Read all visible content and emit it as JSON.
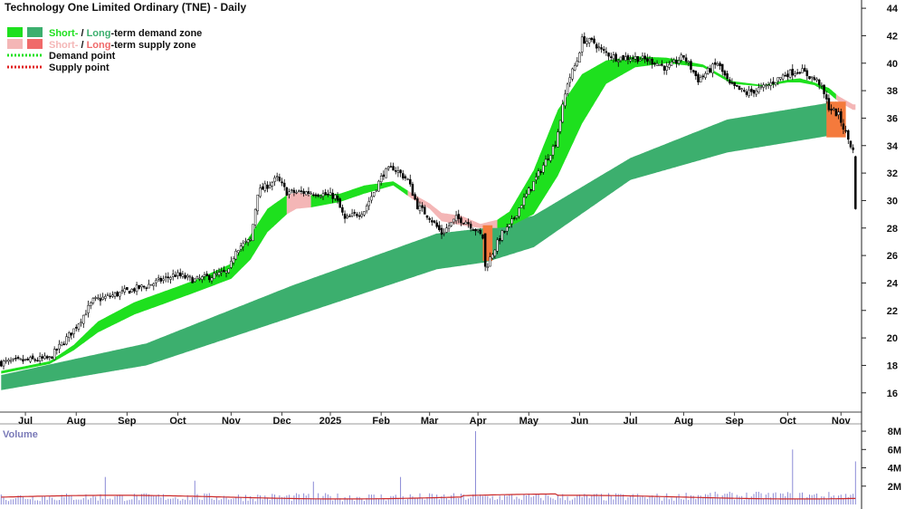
{
  "chart_data": {
    "type": "line",
    "title": "Technology One Limited Ordinary (TNE) - Daily",
    "price_panel": {
      "ylim": [
        14.6,
        44.6
      ],
      "y_ticks": [
        16,
        18,
        20,
        22,
        24,
        26,
        28,
        30,
        32,
        34,
        36,
        38,
        40,
        42,
        44
      ],
      "y_tick_labels": [
        "16",
        "18",
        "20",
        "22",
        "24",
        "26",
        "28",
        "30",
        "32",
        "34",
        "36",
        "38",
        "40",
        "42",
        "44"
      ],
      "x_labels": [
        "Jul",
        "Aug",
        "Sep",
        "Oct",
        "Nov",
        "Dec",
        "2025",
        "Feb",
        "Mar",
        "Apr",
        "May",
        "Jun",
        "Jul",
        "Aug",
        "Sep",
        "Oct",
        "Nov"
      ],
      "x_label_positions": [
        10,
        31,
        52,
        73,
        95,
        116,
        136,
        157,
        177,
        197,
        218,
        239,
        260,
        282,
        303,
        325,
        347
      ],
      "total_days": 356,
      "price_anchors": [
        [
          0,
          18.2
        ],
        [
          20,
          18.5
        ],
        [
          30,
          20.6
        ],
        [
          38,
          22.7
        ],
        [
          50,
          23.3
        ],
        [
          60,
          23.8
        ],
        [
          72,
          24.6
        ],
        [
          80,
          24.2
        ],
        [
          94,
          24.8
        ],
        [
          97,
          26.5
        ],
        [
          103,
          27.1
        ],
        [
          106,
          30.6
        ],
        [
          114,
          31.6
        ],
        [
          118,
          30.6
        ],
        [
          128,
          30.6
        ],
        [
          138,
          30.3
        ],
        [
          142,
          28.6
        ],
        [
          150,
          29.3
        ],
        [
          158,
          32.0
        ],
        [
          162,
          32.4
        ],
        [
          168,
          31.5
        ],
        [
          172,
          29.6
        ],
        [
          177,
          28.8
        ],
        [
          182,
          27.6
        ],
        [
          188,
          28.7
        ],
        [
          192,
          28.5
        ],
        [
          196,
          27.9
        ],
        [
          199,
          27.3
        ],
        [
          200,
          25.0
        ],
        [
          203,
          26.2
        ],
        [
          207,
          27.6
        ],
        [
          210,
          28.1
        ],
        [
          215,
          29.8
        ],
        [
          220,
          31.3
        ],
        [
          226,
          33.2
        ],
        [
          229,
          34.2
        ],
        [
          232,
          36.8
        ],
        [
          234,
          38.6
        ],
        [
          238,
          40.2
        ],
        [
          240,
          41.7
        ],
        [
          245,
          41.5
        ],
        [
          248,
          40.9
        ],
        [
          254,
          40.4
        ],
        [
          262,
          40.4
        ],
        [
          270,
          40.1
        ],
        [
          275,
          39.6
        ],
        [
          282,
          40.5
        ],
        [
          288,
          38.8
        ],
        [
          296,
          40.0
        ],
        [
          301,
          38.4
        ],
        [
          308,
          37.8
        ],
        [
          316,
          38.3
        ],
        [
          324,
          39.2
        ],
        [
          330,
          39.5
        ],
        [
          338,
          38.6
        ],
        [
          342,
          36.8
        ],
        [
          346,
          36.2
        ],
        [
          349,
          34.9
        ],
        [
          352,
          33.6
        ],
        [
          353,
          29.4
        ]
      ],
      "long_term_zone": {
        "name": "Long-term demand zone",
        "x": [
          0,
          60,
          120,
          180,
          200,
          220,
          260,
          300,
          345
        ],
        "upper": [
          17.3,
          19.6,
          23.8,
          27.6,
          28.0,
          28.9,
          33.1,
          35.9,
          37.2
        ],
        "lower": [
          16.2,
          18.0,
          21.5,
          25.0,
          25.5,
          26.6,
          31.5,
          33.5,
          34.8
        ]
      },
      "short_term_zone": {
        "name": "Short-term demand zone",
        "x": [
          0,
          20,
          30,
          40,
          55,
          80,
          95,
          103,
          110,
          118,
          122,
          128,
          140,
          150,
          162,
          170,
          177,
          182,
          190,
          198,
          205,
          210,
          220,
          230,
          240,
          250,
          262,
          275,
          290,
          302,
          315,
          325,
          330,
          336,
          342,
          346,
          352
        ],
        "upper": [
          17.6,
          18.3,
          19.5,
          21.2,
          22.6,
          24.2,
          25.4,
          27.5,
          29.4,
          30.4,
          30.6,
          30.4,
          30.5,
          31.1,
          31.4,
          30.5,
          29.8,
          29.1,
          28.9,
          28.3,
          28.6,
          29.2,
          32.2,
          36.6,
          39.2,
          40.2,
          40.5,
          40.4,
          39.9,
          38.7,
          38.4,
          38.8,
          38.9,
          38.6,
          38.2,
          37.6,
          37.0
        ],
        "lower": [
          17.4,
          18.1,
          19.1,
          20.4,
          21.7,
          23.3,
          24.3,
          25.7,
          27.7,
          29.0,
          29.4,
          29.5,
          29.9,
          30.5,
          31.1,
          30.1,
          29.4,
          28.5,
          28.2,
          28.0,
          28.0,
          28.1,
          29.0,
          31.8,
          35.6,
          38.5,
          39.7,
          40.0,
          39.7,
          38.5,
          38.3,
          38.6,
          38.6,
          38.4,
          37.8,
          37.2,
          36.6
        ],
        "modes": [
          [
            0,
            118,
            "demand"
          ],
          [
            118,
            128,
            "supply"
          ],
          [
            128,
            168,
            "demand"
          ],
          [
            168,
            205,
            "supply"
          ],
          [
            205,
            345,
            "demand"
          ],
          [
            345,
            353,
            "supply"
          ]
        ]
      },
      "supply_zone_boxes": [
        [
          199,
          203
        ],
        [
          341,
          349
        ]
      ]
    },
    "volume_panel": {
      "label": "Volume",
      "ylim": [
        0,
        8.6
      ],
      "y_ticks": [
        2,
        4,
        6,
        8
      ],
      "y_tick_labels": [
        "2M",
        "4M",
        "6M",
        "8M"
      ],
      "spikes": [
        [
          43,
          3.0
        ],
        [
          80,
          2.6
        ],
        [
          129,
          2.5
        ],
        [
          165,
          3.0
        ],
        [
          196,
          8.0
        ],
        [
          327,
          6.0
        ],
        [
          353,
          4.7
        ]
      ]
    },
    "legend": [
      {
        "label_short": "Short-",
        "label_long": "Long",
        "rest": "-term demand zone",
        "colors": [
          "#1ee01e",
          "#3caf6e"
        ],
        "kind": "demand"
      },
      {
        "label_short": "Short-",
        "label_long": "Long",
        "rest": "-term supply zone",
        "colors": [
          "#f4b6b6",
          "#f06a6a"
        ],
        "kind": "supply"
      },
      {
        "label": "Demand point",
        "color": "#1ee01e",
        "kind": "dots"
      },
      {
        "label": "Supply point",
        "color": "#e02020",
        "kind": "dots"
      }
    ],
    "colors": {
      "short_demand": "#1ee01e",
      "long_demand": "#3caf6e",
      "short_supply": "#f4b6b6",
      "long_supply": "#f06a6a",
      "supply_box": "#f47a3c",
      "candle": "#000000",
      "volume_bar": "#8a8ad6",
      "volume_ma": "#cc2a2a",
      "volume_label": "#7a7ab8",
      "short_label_demand": "#1ee01e",
      "long_label_demand": "#3caf6e",
      "short_label_supply": "#f4b6b6",
      "long_label_supply": "#f06a6a"
    }
  }
}
